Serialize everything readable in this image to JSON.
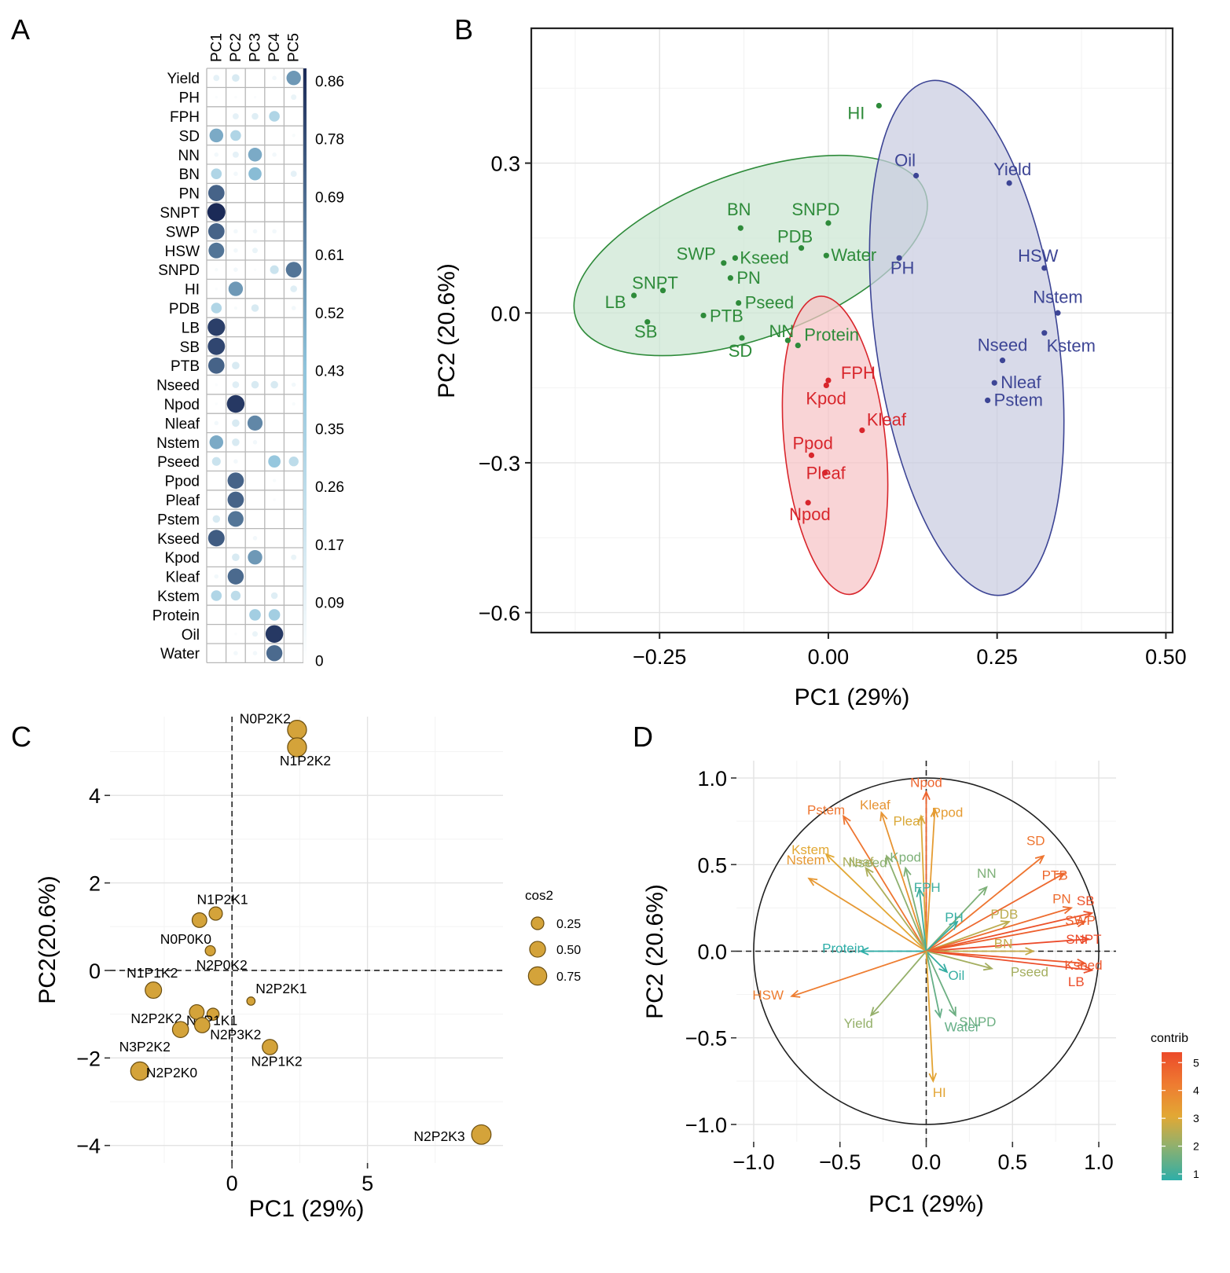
{
  "panel_labels": [
    "A",
    "B",
    "C",
    "D"
  ],
  "chart_data": [
    {
      "id": "A",
      "type": "heatmap",
      "title": "",
      "columns": [
        "PC1",
        "PC2",
        "PC3",
        "PC4",
        "PC5"
      ],
      "rows": [
        "Yield",
        "PH",
        "FPH",
        "SD",
        "NN",
        "BN",
        "PN",
        "SNPT",
        "SWP",
        "HSW",
        "SNPD",
        "HI",
        "PDB",
        "LB",
        "SB",
        "PTB",
        "Nseed",
        "Npod",
        "Nleaf",
        "Nstem",
        "Pseed",
        "Ppod",
        "Pleaf",
        "Pstem",
        "Kseed",
        "Kpod",
        "Kleaf",
        "Kstem",
        "Protein",
        "Oil",
        "Water"
      ],
      "values": [
        [
          0.1,
          0.15,
          0.0,
          0.05,
          0.55
        ],
        [
          0.02,
          0.02,
          0.02,
          0.0,
          0.08
        ],
        [
          0.0,
          0.1,
          0.12,
          0.3,
          0.0
        ],
        [
          0.5,
          0.3,
          0.0,
          0.0,
          0.03
        ],
        [
          0.05,
          0.1,
          0.5,
          0.05,
          0.0
        ],
        [
          0.3,
          0.05,
          0.45,
          0.0,
          0.1
        ],
        [
          0.7,
          0.0,
          0.0,
          0.0,
          0.0
        ],
        [
          0.86,
          0.0,
          0.0,
          0.0,
          0.0
        ],
        [
          0.7,
          0.05,
          0.05,
          0.05,
          0.0
        ],
        [
          0.65,
          0.05,
          0.08,
          0.0,
          0.0
        ],
        [
          0.03,
          0.05,
          0.02,
          0.2,
          0.65
        ],
        [
          0.02,
          0.55,
          0.0,
          0.0,
          0.12
        ],
        [
          0.3,
          0.03,
          0.15,
          0.0,
          0.05
        ],
        [
          0.8,
          0.0,
          0.0,
          0.0,
          0.0
        ],
        [
          0.78,
          0.0,
          0.0,
          0.0,
          0.0
        ],
        [
          0.7,
          0.15,
          0.0,
          0.0,
          0.0
        ],
        [
          0.02,
          0.12,
          0.15,
          0.15,
          0.05
        ],
        [
          0.02,
          0.82,
          0.0,
          0.0,
          0.03
        ],
        [
          0.05,
          0.15,
          0.6,
          0.0,
          0.0
        ],
        [
          0.5,
          0.15,
          0.05,
          0.0,
          0.0
        ],
        [
          0.2,
          0.05,
          0.0,
          0.4,
          0.25
        ],
        [
          0.0,
          0.7,
          0.0,
          0.03,
          0.0
        ],
        [
          0.0,
          0.7,
          0.0,
          0.02,
          0.0
        ],
        [
          0.15,
          0.65,
          0.0,
          0.0,
          0.0
        ],
        [
          0.72,
          0.0,
          0.05,
          0.0,
          0.0
        ],
        [
          0.0,
          0.15,
          0.55,
          0.0,
          0.08
        ],
        [
          0.05,
          0.68,
          0.0,
          0.0,
          0.0
        ],
        [
          0.3,
          0.25,
          0.0,
          0.12,
          0.0
        ],
        [
          0.0,
          0.0,
          0.35,
          0.35,
          0.0
        ],
        [
          0.0,
          0.02,
          0.08,
          0.82,
          0.0
        ],
        [
          0.0,
          0.05,
          0.05,
          0.68,
          0.0
        ]
      ],
      "colorbar_labels": [
        "0.86",
        "0.78",
        "0.69",
        "0.61",
        "0.52",
        "0.43",
        "0.35",
        "0.26",
        "0.17",
        "0.09",
        "0"
      ],
      "colors": {
        "low": "#ffffff",
        "mid": "#8ec3db",
        "high": "#1b2a57"
      }
    },
    {
      "id": "B",
      "type": "scatter",
      "xlabel": "PC1 (29%)",
      "ylabel": "PC2 (20.6%)",
      "xlim": [
        -0.44,
        0.51
      ],
      "ylim": [
        -0.64,
        0.57
      ],
      "xticks": [
        -0.25,
        0.0,
        0.25,
        0.5
      ],
      "xtick_labels": [
        "−0.25",
        "0.00",
        "0.25",
        "0.50"
      ],
      "yticks": [
        -0.6,
        -0.3,
        0.0,
        0.3
      ],
      "ytick_labels": [
        "−0.6",
        "−0.3",
        "0.0",
        "0.3"
      ],
      "groups": [
        {
          "name": "green",
          "color": "#2e8b3a",
          "fill": "#cce6d3",
          "points": [
            {
              "label": "HI",
              "x": 0.075,
              "y": 0.415
            },
            {
              "label": "BN",
              "x": -0.13,
              "y": 0.17
            },
            {
              "label": "SNPD",
              "x": 0.0,
              "y": 0.18
            },
            {
              "label": "PDB",
              "x": -0.04,
              "y": 0.13
            },
            {
              "label": "SWP",
              "x": -0.155,
              "y": 0.1
            },
            {
              "label": "Kseed",
              "x": -0.138,
              "y": 0.11
            },
            {
              "label": "Water",
              "x": -0.003,
              "y": 0.115
            },
            {
              "label": "PN",
              "x": -0.145,
              "y": 0.07
            },
            {
              "label": "SNPT",
              "x": -0.245,
              "y": 0.045
            },
            {
              "label": "LB",
              "x": -0.288,
              "y": 0.035
            },
            {
              "label": "Pseed",
              "x": -0.133,
              "y": 0.02
            },
            {
              "label": "PTB",
              "x": -0.185,
              "y": -0.005
            },
            {
              "label": "SB",
              "x": -0.268,
              "y": -0.018
            },
            {
              "label": "NN",
              "x": -0.06,
              "y": -0.055
            },
            {
              "label": "Protein",
              "x": -0.045,
              "y": -0.065
            },
            {
              "label": "SD",
              "x": -0.128,
              "y": -0.05
            }
          ]
        },
        {
          "name": "blue",
          "color": "#3d4595",
          "fill": "#c9cce1",
          "points": [
            {
              "label": "Oil",
              "x": 0.13,
              "y": 0.275
            },
            {
              "label": "Yield",
              "x": 0.268,
              "y": 0.26
            },
            {
              "label": "PH",
              "x": 0.105,
              "y": 0.11
            },
            {
              "label": "HSW",
              "x": 0.32,
              "y": 0.09
            },
            {
              "label": "Nstem",
              "x": 0.34,
              "y": 0.0
            },
            {
              "label": "Kstem",
              "x": 0.32,
              "y": -0.04
            },
            {
              "label": "Nseed",
              "x": 0.258,
              "y": -0.095
            },
            {
              "label": "Nleaf",
              "x": 0.246,
              "y": -0.14
            },
            {
              "label": "Pstem",
              "x": 0.236,
              "y": -0.175
            }
          ]
        },
        {
          "name": "red",
          "color": "#d8262c",
          "fill": "#f6c4c6",
          "points": [
            {
              "label": "FPH",
              "x": 0.0,
              "y": -0.135
            },
            {
              "label": "Kpod",
              "x": -0.003,
              "y": -0.145
            },
            {
              "label": "Kleaf",
              "x": 0.05,
              "y": -0.235
            },
            {
              "label": "Ppod",
              "x": -0.025,
              "y": -0.285
            },
            {
              "label": "Pleaf",
              "x": -0.005,
              "y": -0.32
            },
            {
              "label": "Npod",
              "x": -0.03,
              "y": -0.38
            }
          ]
        }
      ]
    },
    {
      "id": "C",
      "type": "scatter",
      "xlabel": "PC1 (29%)",
      "ylabel": "PC2(20.6%)",
      "xlim": [
        -4.5,
        10.0
      ],
      "ylim": [
        -4.4,
        5.8
      ],
      "xticks": [
        0,
        5
      ],
      "xtick_labels": [
        "0",
        "5"
      ],
      "yticks": [
        -4,
        -2,
        0,
        2,
        4
      ],
      "ytick_labels": [
        "−4",
        "−2",
        "0",
        "2",
        "4"
      ],
      "legend_title": "cos2",
      "legend_values": [
        0.25,
        0.5,
        0.75
      ],
      "legend_labels": [
        "0.25",
        "0.50",
        "0.75"
      ],
      "point_color": "#d4a33a",
      "points": [
        {
          "label": "N0P2K2",
          "x": 2.4,
          "y": 5.5,
          "cos2": 0.82
        },
        {
          "label": "N1P2K2",
          "x": 2.4,
          "y": 5.1,
          "cos2": 0.82
        },
        {
          "label": "N1P2K1",
          "x": -0.6,
          "y": 1.3,
          "cos2": 0.3
        },
        {
          "label": "N0P0K0",
          "x": -1.2,
          "y": 1.15,
          "cos2": 0.4
        },
        {
          "label": "N2P0K2",
          "x": -0.8,
          "y": 0.45,
          "cos2": 0.12
        },
        {
          "label": "N1P1K2",
          "x": -2.9,
          "y": -0.45,
          "cos2": 0.55
        },
        {
          "label": "N2P2K1",
          "x": 0.7,
          "y": -0.7,
          "cos2": 0.05
        },
        {
          "label": "N2P1K1",
          "x": -0.7,
          "y": -1.0,
          "cos2": 0.22
        },
        {
          "label": "N2P2K2",
          "x": -1.3,
          "y": -0.95,
          "cos2": 0.4
        },
        {
          "label": "N3P2K2",
          "x": -1.9,
          "y": -1.35,
          "cos2": 0.52
        },
        {
          "label": "N2P3K2",
          "x": -1.1,
          "y": -1.25,
          "cos2": 0.45
        },
        {
          "label": "N2P1K2",
          "x": 1.4,
          "y": -1.75,
          "cos2": 0.45
        },
        {
          "label": "N2P2K0",
          "x": -3.4,
          "y": -2.3,
          "cos2": 0.75
        },
        {
          "label": "N2P2K3",
          "x": 9.2,
          "y": -3.75,
          "cos2": 0.88
        }
      ]
    },
    {
      "id": "D",
      "type": "scatter",
      "xlabel": "PC1 (29%)",
      "ylabel": "PC2 (20.6%)",
      "xlim": [
        -1.1,
        1.1
      ],
      "ylim": [
        -1.1,
        1.1
      ],
      "xticks": [
        -1.0,
        -0.5,
        0.0,
        0.5,
        1.0
      ],
      "xtick_labels": [
        "−1.0",
        "−0.5",
        "0.0",
        "0.5",
        "1.0"
      ],
      "yticks": [
        -1.0,
        -0.5,
        0.0,
        0.5,
        1.0
      ],
      "ytick_labels": [
        "−1.0",
        "−0.5",
        "0.0",
        "0.5",
        "1.0"
      ],
      "legend_title": "contrib",
      "legend_labels": [
        "5",
        "4",
        "3",
        "2",
        "1"
      ],
      "legend_values": [
        5,
        4,
        3,
        2,
        1
      ],
      "vectors": [
        {
          "label": "Npod",
          "x": 0.0,
          "y": 0.92,
          "contrib": 5.0
        },
        {
          "label": "Ppod",
          "x": 0.05,
          "y": 0.82,
          "contrib": 3.6
        },
        {
          "label": "Pleaf",
          "x": -0.03,
          "y": 0.78,
          "contrib": 3.2
        },
        {
          "label": "Kleaf",
          "x": -0.26,
          "y": 0.8,
          "contrib": 3.8
        },
        {
          "label": "Pstem",
          "x": -0.48,
          "y": 0.78,
          "contrib": 4.6
        },
        {
          "label": "Kstem",
          "x": -0.58,
          "y": 0.56,
          "contrib": 3.3
        },
        {
          "label": "Nseed",
          "x": -0.23,
          "y": 0.55,
          "contrib": 2.2
        },
        {
          "label": "Nstem",
          "x": -0.68,
          "y": 0.42,
          "contrib": 3.7
        },
        {
          "label": "Nleaf",
          "x": -0.35,
          "y": 0.48,
          "contrib": 2.6
        },
        {
          "label": "Kpod",
          "x": -0.12,
          "y": 0.48,
          "contrib": 2.0
        },
        {
          "label": "FPH",
          "x": -0.04,
          "y": 0.36,
          "contrib": 1.2
        },
        {
          "label": "SD",
          "x": 0.68,
          "y": 0.55,
          "contrib": 4.6
        },
        {
          "label": "PTB",
          "x": 0.8,
          "y": 0.45,
          "contrib": 4.9
        },
        {
          "label": "NN",
          "x": 0.35,
          "y": 0.37,
          "contrib": 2.0
        },
        {
          "label": "PH",
          "x": 0.18,
          "y": 0.17,
          "contrib": 1.1
        },
        {
          "label": "PDB",
          "x": 0.48,
          "y": 0.17,
          "contrib": 2.8
        },
        {
          "label": "PN",
          "x": 0.84,
          "y": 0.25,
          "contrib": 4.8
        },
        {
          "label": "SB",
          "x": 0.96,
          "y": 0.22,
          "contrib": 5.4
        },
        {
          "label": "SWP",
          "x": 0.92,
          "y": 0.17,
          "contrib": 5.1
        },
        {
          "label": "SNPT",
          "x": 0.94,
          "y": 0.07,
          "contrib": 5.6
        },
        {
          "label": "BN",
          "x": 0.62,
          "y": 0.0,
          "contrib": 2.9
        },
        {
          "label": "Kseed",
          "x": 0.92,
          "y": -0.07,
          "contrib": 5.3
        },
        {
          "label": "LB",
          "x": 0.96,
          "y": -0.11,
          "contrib": 5.5
        },
        {
          "label": "Protein",
          "x": -0.38,
          "y": 0.0,
          "contrib": 1.0
        },
        {
          "label": "Oil",
          "x": 0.12,
          "y": -0.12,
          "contrib": 1.1
        },
        {
          "label": "Pseed",
          "x": 0.38,
          "y": -0.1,
          "contrib": 2.5
        },
        {
          "label": "SNPD",
          "x": 0.17,
          "y": -0.37,
          "contrib": 1.8
        },
        {
          "label": "Water",
          "x": 0.08,
          "y": -0.38,
          "contrib": 1.7
        },
        {
          "label": "Yield",
          "x": -0.32,
          "y": -0.37,
          "contrib": 2.3
        },
        {
          "label": "HSW",
          "x": -0.78,
          "y": -0.26,
          "contrib": 4.4
        },
        {
          "label": "HI",
          "x": 0.04,
          "y": -0.75,
          "contrib": 3.4
        }
      ]
    }
  ]
}
